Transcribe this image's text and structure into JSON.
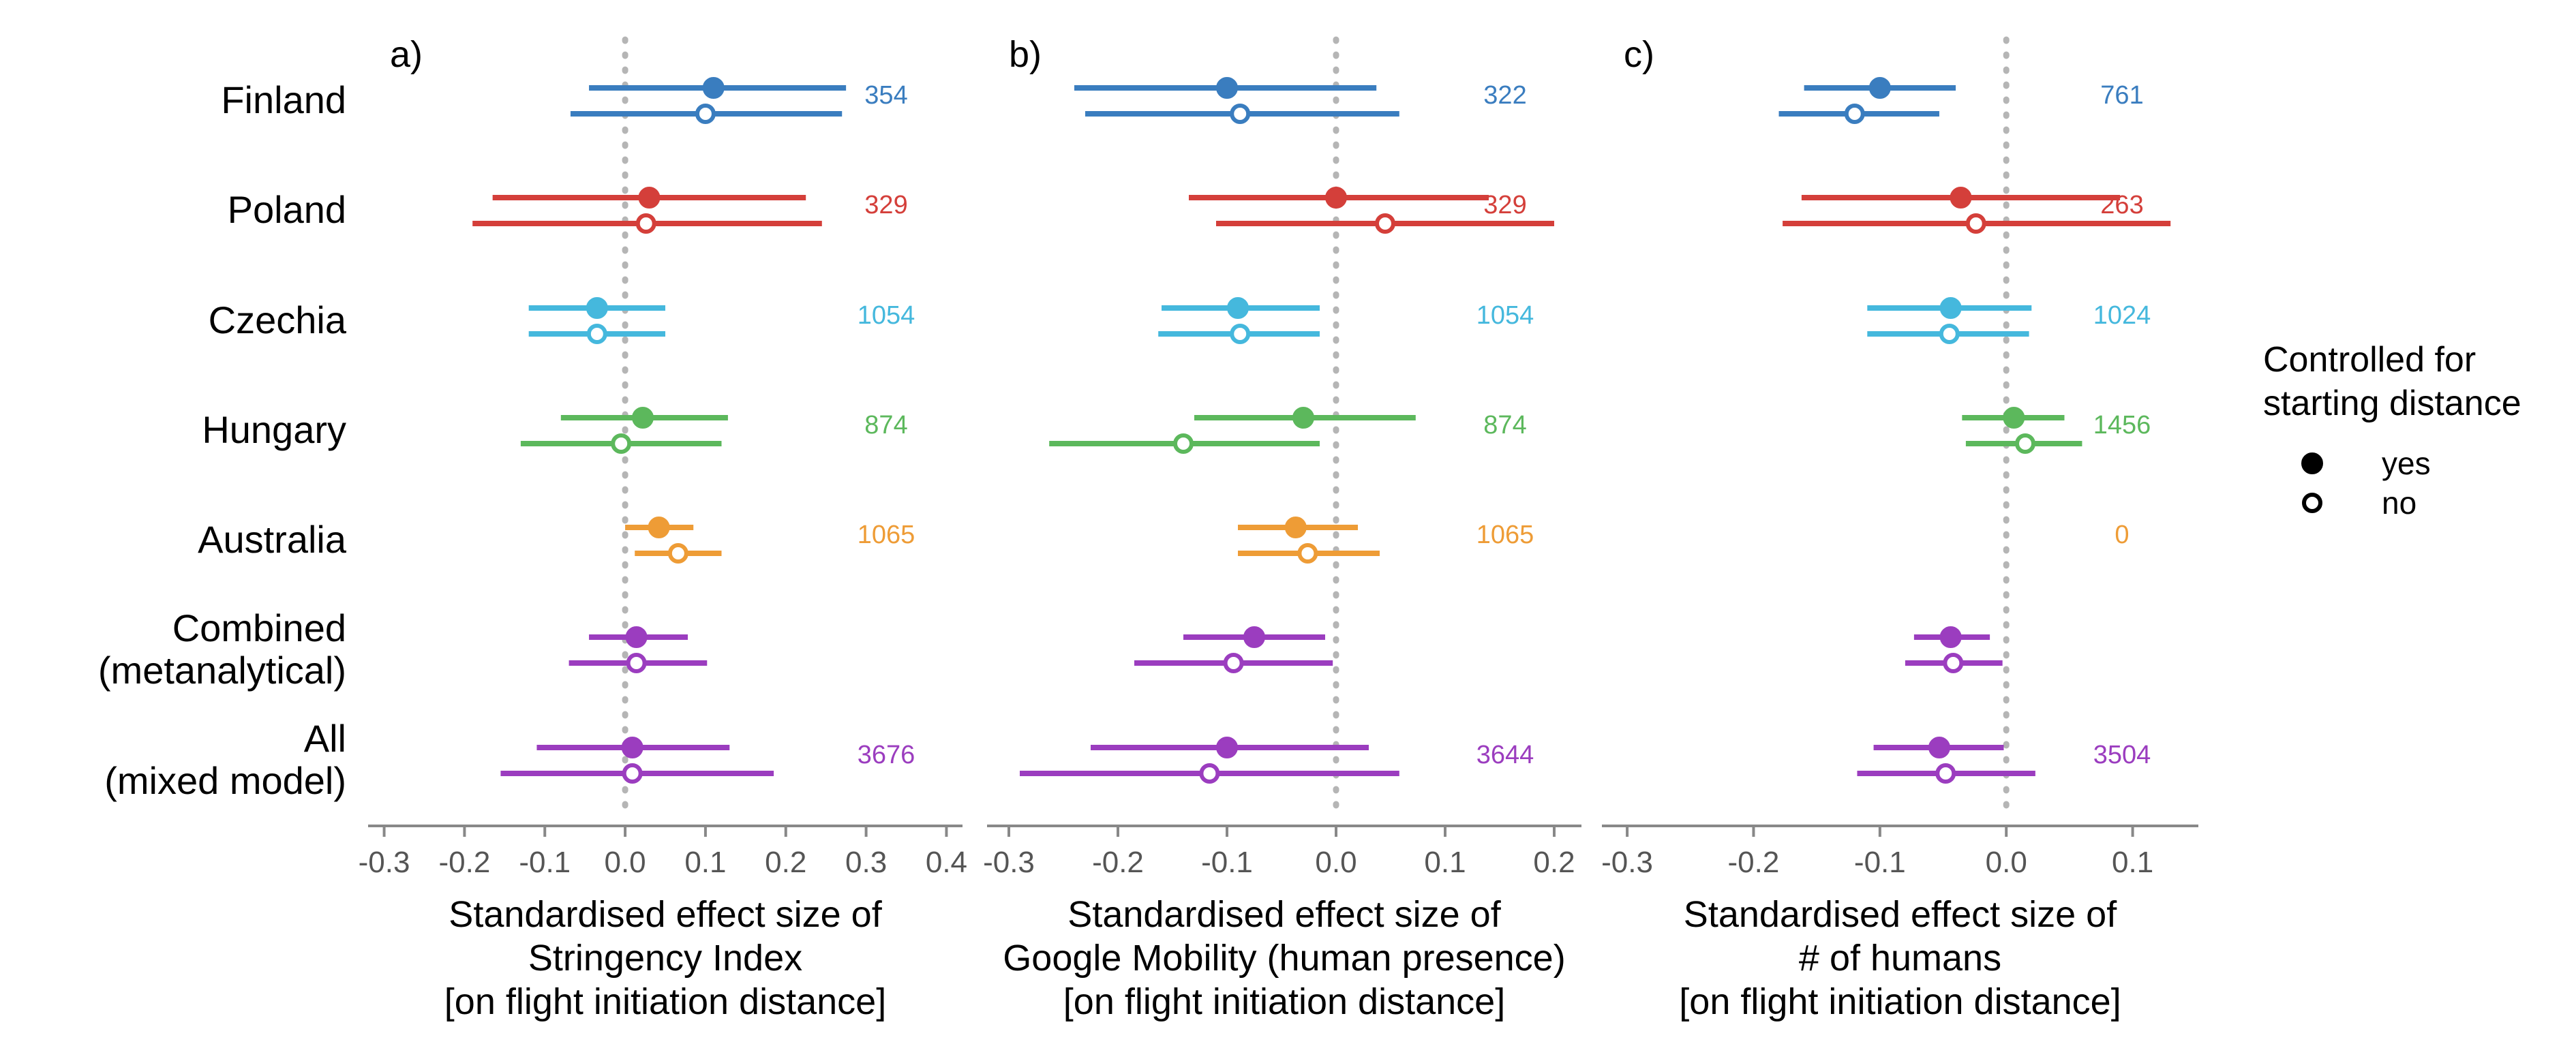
{
  "chart_data": {
    "type": "forest",
    "rows": [
      {
        "key": "finland",
        "label": [
          "Finland"
        ],
        "color": "#3a7dbf"
      },
      {
        "key": "poland",
        "label": [
          "Poland"
        ],
        "color": "#d43f3a"
      },
      {
        "key": "czechia",
        "label": [
          "Czechia"
        ],
        "color": "#45b8dd"
      },
      {
        "key": "hungary",
        "label": [
          "Hungary"
        ],
        "color": "#5cb85c"
      },
      {
        "key": "australia",
        "label": [
          "Australia"
        ],
        "color": "#ee9c36"
      },
      {
        "key": "combined",
        "label": [
          "Combined",
          "(metanalytical)"
        ],
        "color": "#9b3dbf"
      },
      {
        "key": "all",
        "label": [
          "All",
          "(mixed model)"
        ],
        "color": "#9b3dbf"
      }
    ],
    "legend": {
      "title": [
        "Controlled for",
        "starting distance"
      ],
      "items": [
        {
          "label": "yes",
          "marker": "filled"
        },
        {
          "label": "no",
          "marker": "open"
        }
      ],
      "placement": "right"
    },
    "panels": [
      {
        "id": "a",
        "panel_label": "a)",
        "xlabel": [
          "Standardised effect size of",
          "Stringency Index",
          "[on flight initiation distance]"
        ],
        "xlim": [
          -0.32,
          0.42
        ],
        "ticks": [
          -0.3,
          -0.2,
          -0.1,
          0.0,
          0.1,
          0.2,
          0.3,
          0.4
        ],
        "tick_labels": [
          "-0.3",
          "-0.2",
          "-0.1",
          "0.0",
          "0.1",
          "0.2",
          "0.3",
          "0.4"
        ],
        "n": [
          "354",
          "329",
          "1054",
          "874",
          "1065",
          "",
          "3676"
        ],
        "yes": [
          {
            "est": 0.11,
            "lo": -0.045,
            "hi": 0.275
          },
          {
            "est": 0.03,
            "lo": -0.165,
            "hi": 0.225
          },
          {
            "est": -0.035,
            "lo": -0.12,
            "hi": 0.05
          },
          {
            "est": 0.022,
            "lo": -0.08,
            "hi": 0.128
          },
          {
            "est": 0.042,
            "lo": 0.0,
            "hi": 0.085
          },
          {
            "est": 0.014,
            "lo": -0.045,
            "hi": 0.078
          },
          {
            "est": 0.009,
            "lo": -0.11,
            "hi": 0.13
          }
        ],
        "no": [
          {
            "est": 0.1,
            "lo": -0.068,
            "hi": 0.27
          },
          {
            "est": 0.026,
            "lo": -0.19,
            "hi": 0.245
          },
          {
            "est": -0.035,
            "lo": -0.12,
            "hi": 0.05
          },
          {
            "est": -0.005,
            "lo": -0.13,
            "hi": 0.12
          },
          {
            "est": 0.066,
            "lo": 0.012,
            "hi": 0.12
          },
          {
            "est": 0.014,
            "lo": -0.07,
            "hi": 0.102
          },
          {
            "est": 0.009,
            "lo": -0.155,
            "hi": 0.185
          }
        ]
      },
      {
        "id": "b",
        "panel_label": "b)",
        "xlabel": [
          "Standardised effect size of",
          "Google Mobility (human presence)",
          "[on flight initiation distance]"
        ],
        "xlim": [
          -0.32,
          0.225
        ],
        "ticks": [
          -0.3,
          -0.2,
          -0.1,
          0.0,
          0.1,
          0.2
        ],
        "tick_labels": [
          "-0.3",
          "-0.2",
          "-0.1",
          "0.0",
          "0.1",
          "0.2"
        ],
        "n": [
          "322",
          "329",
          "1054",
          "874",
          "1065",
          "",
          "3644"
        ],
        "yes": [
          {
            "est": -0.1,
            "lo": -0.24,
            "hi": 0.037
          },
          {
            "est": 0.0,
            "lo": -0.135,
            "hi": 0.14
          },
          {
            "est": -0.09,
            "lo": -0.16,
            "hi": -0.015
          },
          {
            "est": -0.03,
            "lo": -0.13,
            "hi": 0.073
          },
          {
            "est": -0.037,
            "lo": -0.09,
            "hi": 0.02
          },
          {
            "est": -0.075,
            "lo": -0.14,
            "hi": -0.01
          },
          {
            "est": -0.1,
            "lo": -0.225,
            "hi": 0.03
          }
        ],
        "no": [
          {
            "est": -0.088,
            "lo": -0.23,
            "hi": 0.058
          },
          {
            "est": 0.045,
            "lo": -0.11,
            "hi": 0.2
          },
          {
            "est": -0.088,
            "lo": -0.163,
            "hi": -0.015
          },
          {
            "est": -0.14,
            "lo": -0.263,
            "hi": -0.015
          },
          {
            "est": -0.026,
            "lo": -0.09,
            "hi": 0.04
          },
          {
            "est": -0.094,
            "lo": -0.185,
            "hi": -0.003
          },
          {
            "est": -0.116,
            "lo": -0.29,
            "hi": 0.058
          }
        ]
      },
      {
        "id": "c",
        "panel_label": "c)",
        "xlabel": [
          "Standardised effect size of",
          "# of humans",
          "[on flight initiation distance]"
        ],
        "xlim": [
          -0.32,
          0.152
        ],
        "ticks": [
          -0.3,
          -0.2,
          -0.1,
          0.0,
          0.1
        ],
        "tick_labels": [
          "-0.3",
          "-0.2",
          "-0.1",
          "0.0",
          "0.1"
        ],
        "n": [
          "761",
          "263",
          "1024",
          "1456",
          "0",
          "",
          "3504"
        ],
        "yes": [
          {
            "est": -0.1,
            "lo": -0.16,
            "hi": -0.04
          },
          {
            "est": -0.036,
            "lo": -0.162,
            "hi": 0.09
          },
          {
            "est": -0.044,
            "lo": -0.11,
            "hi": 0.02
          },
          {
            "est": 0.006,
            "lo": -0.035,
            "hi": 0.046
          },
          {
            "est": null,
            "lo": null,
            "hi": null
          },
          {
            "est": -0.044,
            "lo": -0.073,
            "hi": -0.013
          },
          {
            "est": -0.053,
            "lo": -0.105,
            "hi": -0.002
          }
        ],
        "no": [
          {
            "est": -0.12,
            "lo": -0.18,
            "hi": -0.053
          },
          {
            "est": -0.024,
            "lo": -0.177,
            "hi": 0.13
          },
          {
            "est": -0.045,
            "lo": -0.11,
            "hi": 0.018
          },
          {
            "est": 0.015,
            "lo": -0.032,
            "hi": 0.06
          },
          {
            "est": null,
            "lo": null,
            "hi": null
          },
          {
            "est": -0.042,
            "lo": -0.08,
            "hi": -0.003
          },
          {
            "est": -0.048,
            "lo": -0.118,
            "hi": 0.023
          }
        ]
      }
    ]
  }
}
